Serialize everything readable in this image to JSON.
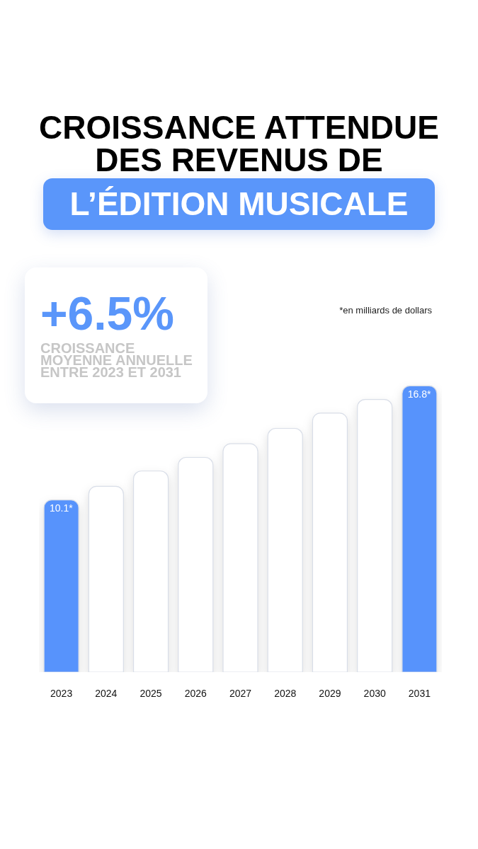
{
  "chart_data": {
    "type": "bar",
    "title": "CROISSANCE ATTENDUE\nDES REVENUS DE\nL’ÉDITION MUSICALE",
    "annotations": [
      "+6.5%",
      "CROISSANCE\nMOYENNE ANNUELLE\nENTRE 2023 ET 2031",
      "*en milliards de dollars"
    ],
    "categories": [
      "2023",
      "2024",
      "2025",
      "2026",
      "2027",
      "2028",
      "2029",
      "2030",
      "2031"
    ],
    "values": [
      10.1,
      10.9,
      11.8,
      12.6,
      13.4,
      14.3,
      15.2,
      16.0,
      16.8
    ],
    "colors": [
      "#5793fc",
      "#ffffff",
      "#ffffff",
      "#ffffff",
      "#ffffff",
      "#ffffff",
      "#ffffff",
      "#ffffff",
      "#5793fc"
    ],
    "value_labels": [
      "10.1*",
      null,
      null,
      null,
      null,
      null,
      null,
      null,
      "16.8*"
    ],
    "tick_labels": "x"
  }
}
